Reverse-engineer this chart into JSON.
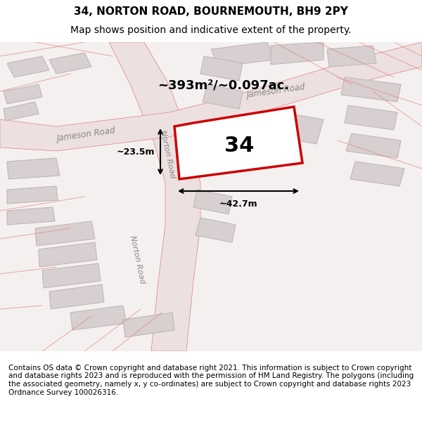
{
  "title_line1": "34, NORTON ROAD, BOURNEMOUTH, BH9 2PY",
  "title_line2": "Map shows position and indicative extent of the property.",
  "footer_text": "Contains OS data © Crown copyright and database right 2021. This information is subject to Crown copyright and database rights 2023 and is reproduced with the permission of HM Land Registry. The polygons (including the associated geometry, namely x, y co-ordinates) are subject to Crown copyright and database rights 2023 Ordnance Survey 100026316.",
  "area_label": "~393m²/~0.097ac.",
  "number_label": "34",
  "width_label": "~42.7m",
  "height_label": "~23.5m",
  "bg_color": "#f5f0f0",
  "map_bg": "#f5f0f0",
  "road_fill": "#e8e0e0",
  "building_fill": "#d8d0d0",
  "highlight_color": "#cc0000",
  "road_line_color": "#e8a0a0",
  "map_xlim": [
    0,
    600
  ],
  "map_ylim": [
    0,
    440
  ],
  "title_fontsize": 11,
  "subtitle_fontsize": 10,
  "footer_fontsize": 7.5
}
